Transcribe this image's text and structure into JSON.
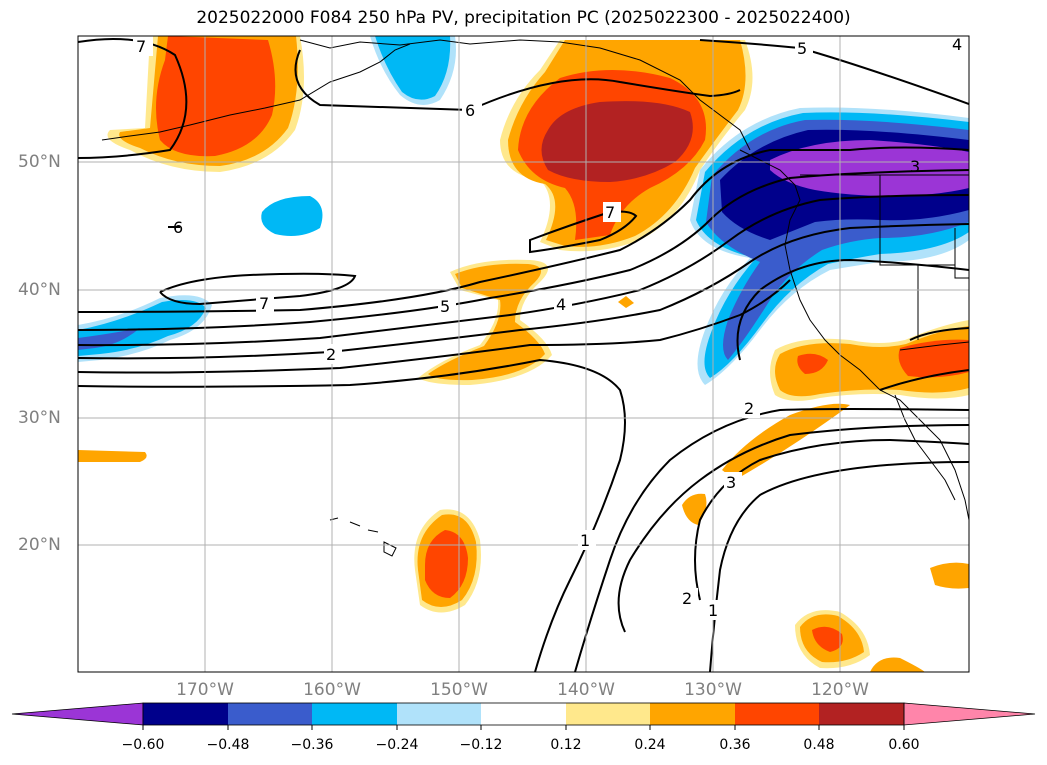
{
  "title": "2025022000 F084 250 hPa PV, precipitation PC (2025022300 - 2025022400)",
  "lat_labels": [
    "50°N",
    "40°N",
    "30°N",
    "20°N"
  ],
  "lon_labels": [
    "170°W",
    "160°W",
    "150°W",
    "140°W",
    "130°W",
    "120°W"
  ],
  "colorbar": {
    "ticks": [
      "−0.60",
      "−0.48",
      "−0.36",
      "−0.24",
      "−0.12",
      "0.12",
      "0.24",
      "0.36",
      "0.48",
      "0.60"
    ],
    "colors": [
      "#9b35d6",
      "#00008b",
      "#3a5ccc",
      "#00b8f5",
      "#b0e2fa",
      "#ffffff",
      "#ffe88c",
      "#ffa500",
      "#ff4500",
      "#b22222",
      "#ff85aa"
    ]
  },
  "contour_labels": [
    "7",
    "6",
    "6",
    "7",
    "7",
    "5",
    "4",
    "2",
    "2",
    "3",
    "1",
    "2",
    "1",
    "3",
    "5",
    "4"
  ]
}
